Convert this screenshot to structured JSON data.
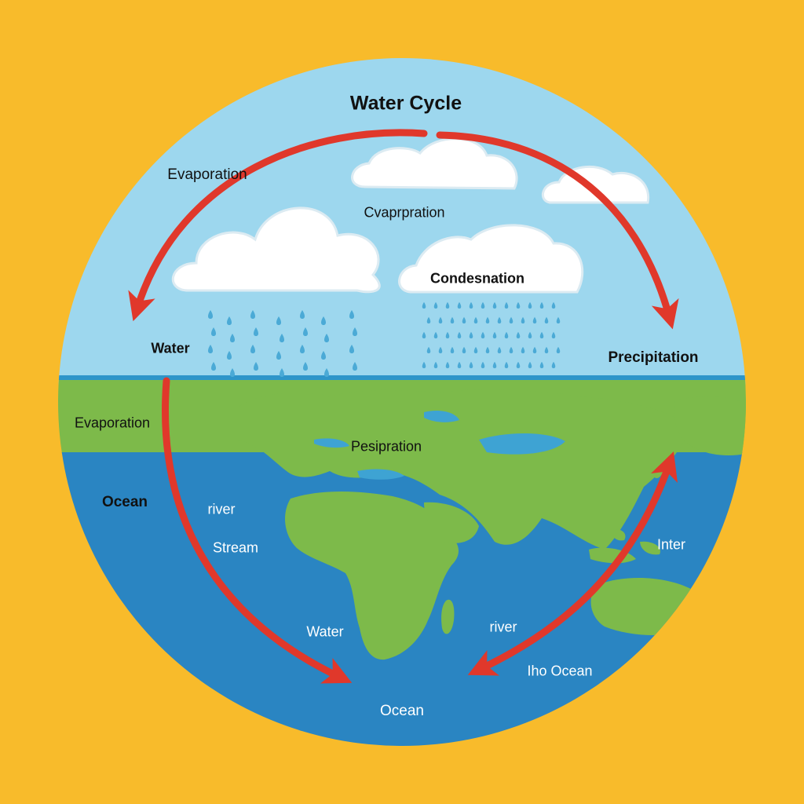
{
  "colors": {
    "background": "#F8BB2B",
    "sky": "#9DD7EE",
    "ocean": "#2A85C2",
    "land": "#7DBA4A",
    "arrow": "#E0382B",
    "rain": "#4BAAD6",
    "cloud": "#FFFFFF"
  },
  "diagram": {
    "title": "Water Cycle",
    "labels": {
      "evaporation_sky": "Evaporation",
      "cvaprpration": "Cvaprpration",
      "condensation": "Condesnation",
      "water_sky": "Water",
      "precipitation": "Precipitation",
      "evaporation_land": "Evaporation",
      "pesipration": "Pesipration",
      "ocean_left": "Ocean",
      "river_left": "river",
      "stream": "Stream",
      "inter": "Inter",
      "water_bottom": "Water",
      "river_right": "river",
      "iho_ocean": "Iho Ocean",
      "ocean_bottom": "Ocean"
    },
    "icons": {
      "clouds": "cloud-icon",
      "rain": "raindrop-icon",
      "arrows": "cycle-arrow",
      "map": "world-map"
    }
  }
}
